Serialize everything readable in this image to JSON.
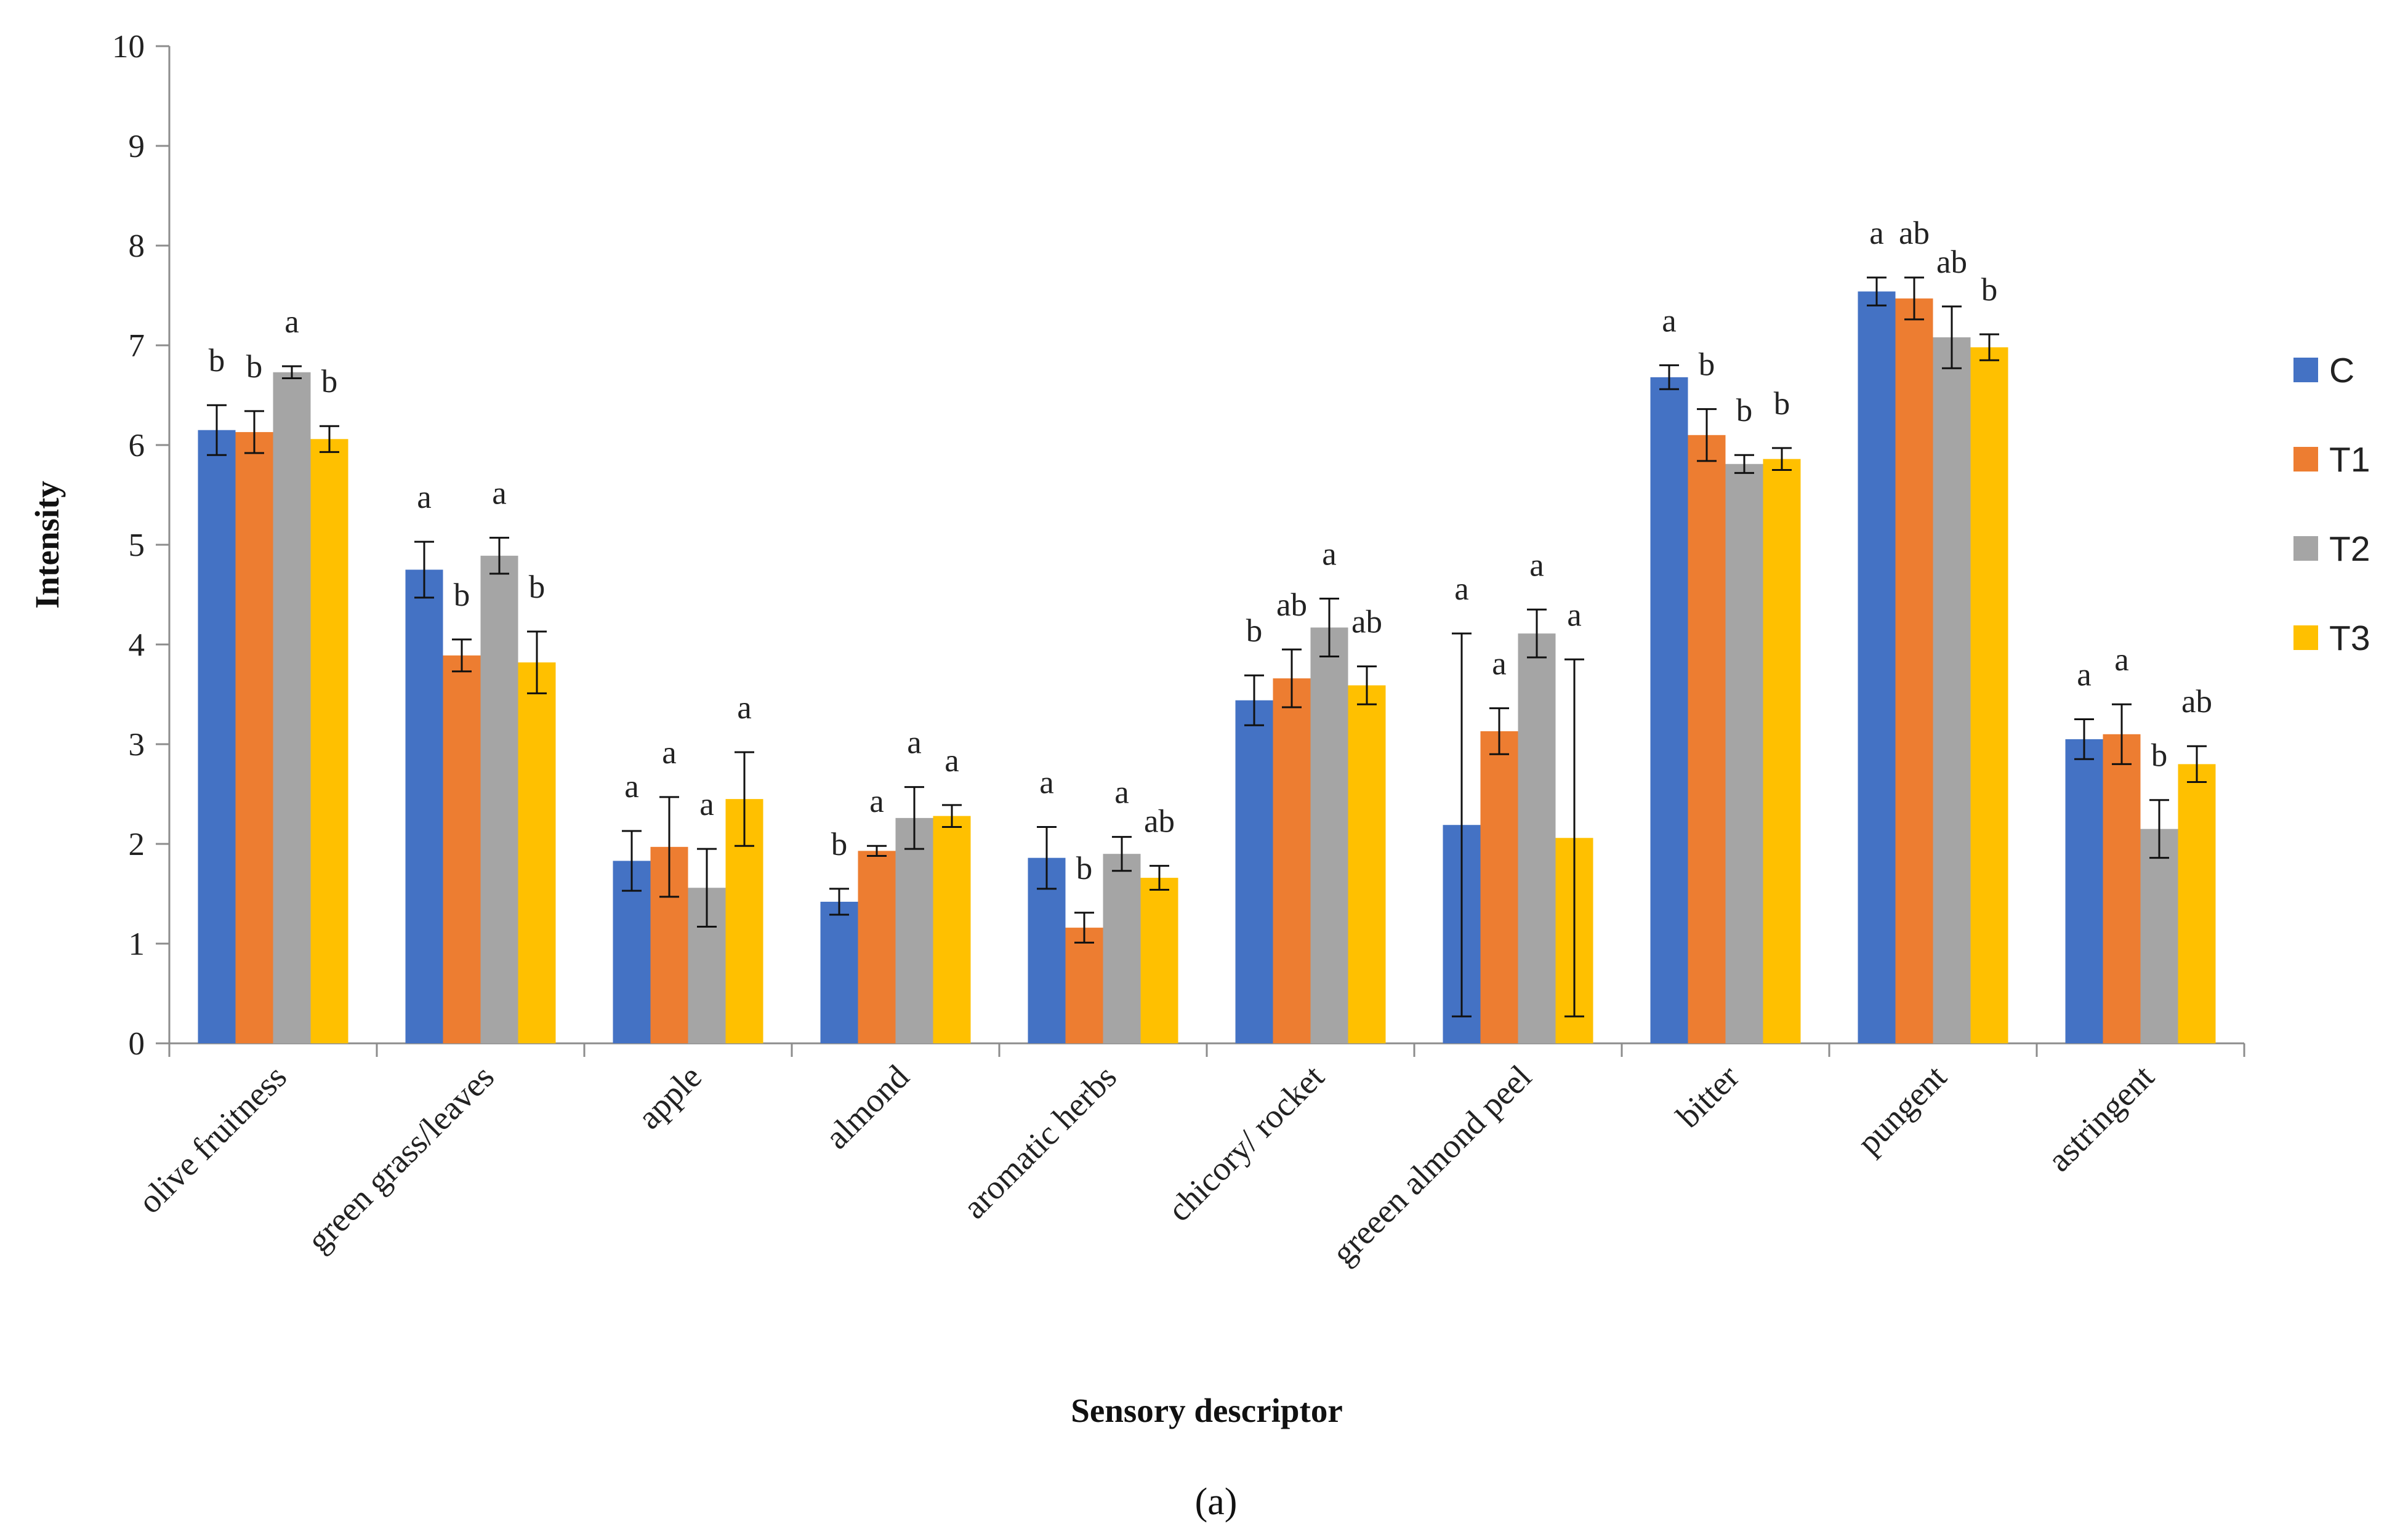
{
  "chart_data": {
    "type": "bar",
    "title": "",
    "xlabel": "Sensory descriptor",
    "ylabel": "Intensity",
    "panel_label": "(a)",
    "ylim": [
      0,
      10
    ],
    "yticks": [
      "0",
      "1",
      "2",
      "3",
      "4",
      "5",
      "6",
      "7",
      "8",
      "9",
      "10"
    ],
    "grid": false,
    "legend_position": "right",
    "categories": [
      "olive fruitness",
      "green grass/leaves",
      "apple",
      "almond",
      "aromatic herbs",
      "chicory/ rocket",
      "greeen almond peel",
      "bitter",
      "pungent",
      "astringent"
    ],
    "series": [
      {
        "name": "C",
        "color": "#4472C4",
        "values": [
          6.15,
          4.75,
          1.83,
          1.42,
          1.86,
          3.44,
          2.19,
          6.68,
          7.54,
          3.05
        ],
        "errors": [
          0.25,
          0.28,
          0.3,
          0.13,
          0.31,
          0.25,
          1.92,
          0.12,
          0.14,
          0.2
        ],
        "sig": [
          "b",
          "a",
          "a",
          "b",
          "a",
          "b",
          "a",
          "a",
          "a",
          "a"
        ]
      },
      {
        "name": "T1",
        "color": "#ED7D31",
        "values": [
          6.13,
          3.89,
          1.97,
          1.93,
          1.16,
          3.66,
          3.13,
          6.1,
          7.47,
          3.1
        ],
        "errors": [
          0.21,
          0.16,
          0.5,
          0.05,
          0.15,
          0.29,
          0.23,
          0.26,
          0.21,
          0.3
        ],
        "sig": [
          "b",
          "b",
          "a",
          "a",
          "b",
          "ab",
          "a",
          "b",
          "ab",
          "a"
        ]
      },
      {
        "name": "T2",
        "color": "#A5A5A5",
        "values": [
          6.73,
          4.89,
          1.56,
          2.26,
          1.9,
          4.17,
          4.11,
          5.81,
          7.08,
          2.15
        ],
        "errors": [
          0.06,
          0.18,
          0.39,
          0.31,
          0.17,
          0.29,
          0.24,
          0.09,
          0.31,
          0.29
        ],
        "sig": [
          "a",
          "a",
          "a",
          "a",
          "a",
          "a",
          "a",
          "b",
          "ab",
          "b"
        ]
      },
      {
        "name": "T3",
        "color": "#FFC000",
        "values": [
          6.06,
          3.82,
          2.45,
          2.28,
          1.66,
          3.59,
          2.06,
          5.86,
          6.98,
          2.8
        ],
        "errors": [
          0.13,
          0.31,
          0.47,
          0.11,
          0.12,
          0.19,
          1.79,
          0.11,
          0.13,
          0.18
        ],
        "sig": [
          "b",
          "b",
          "a",
          "a",
          "ab",
          "ab",
          "a",
          "b",
          "b",
          "ab"
        ]
      }
    ]
  }
}
